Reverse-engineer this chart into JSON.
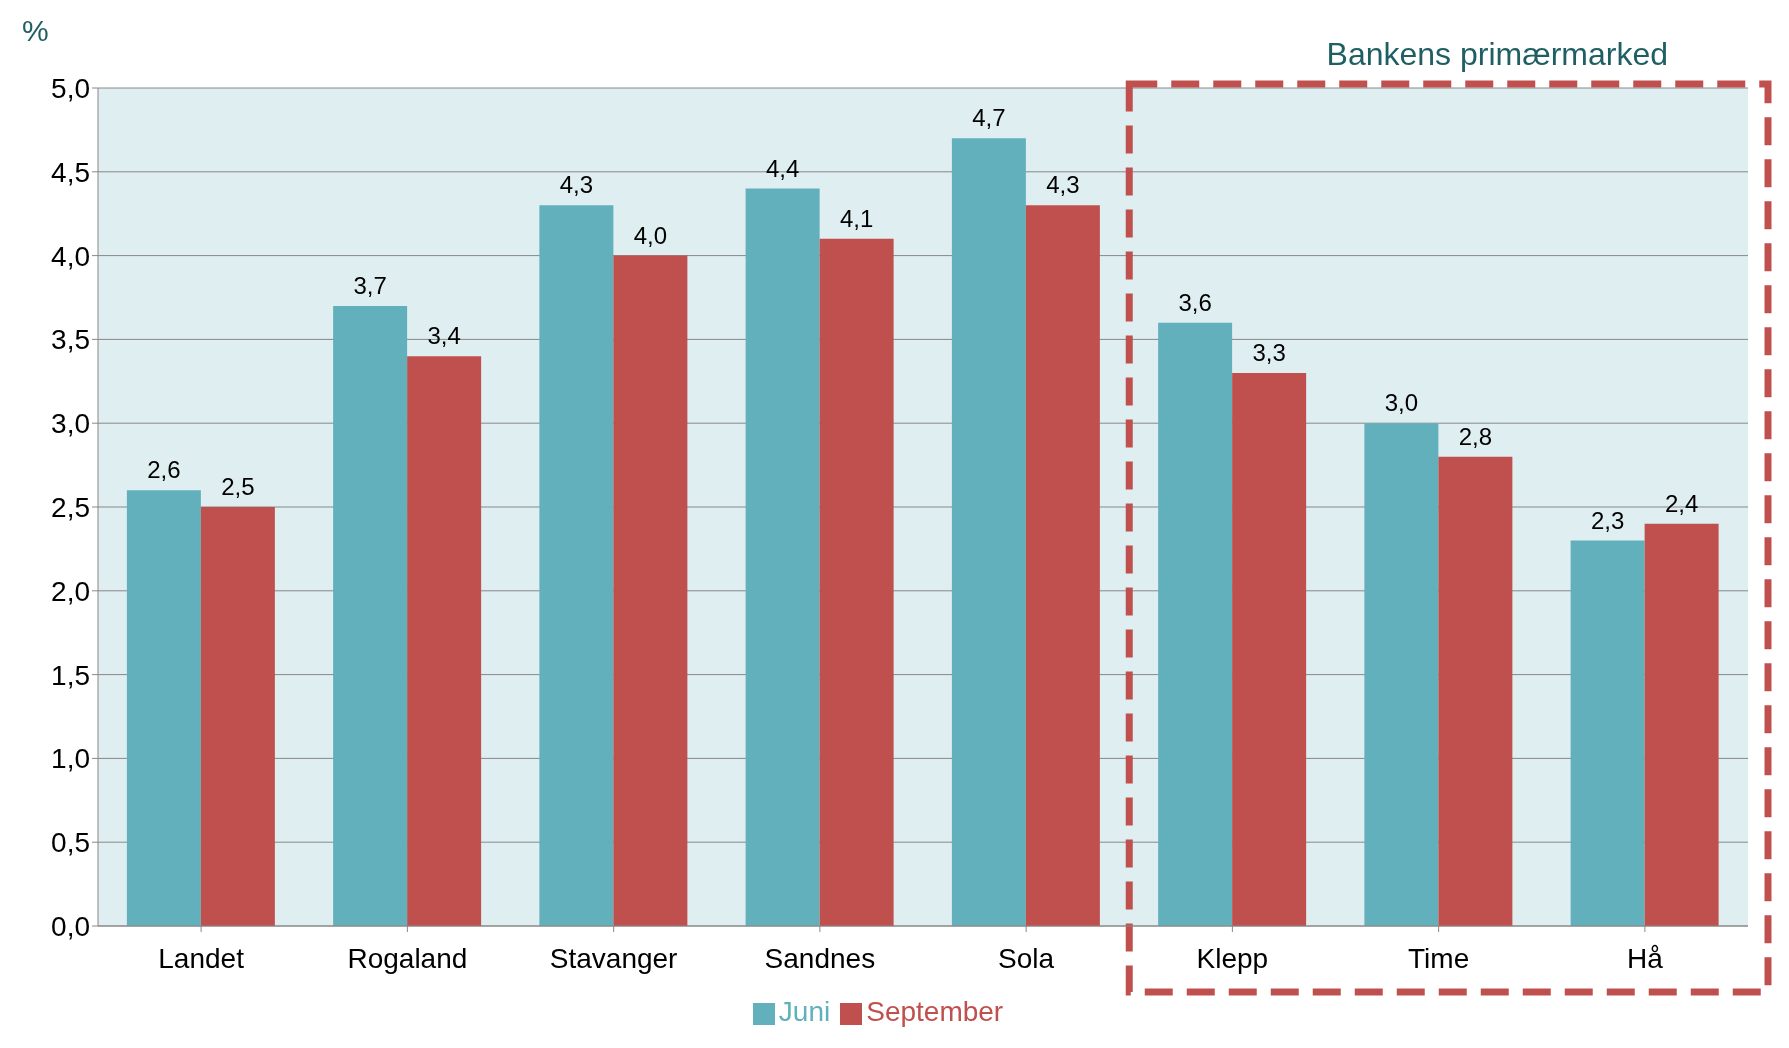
{
  "chart_data": {
    "type": "bar",
    "ylabel": "%",
    "categories": [
      "Landet",
      "Rogaland",
      "Stavanger",
      "Sandnes",
      "Sola",
      "Klepp",
      "Time",
      "Hå"
    ],
    "series": [
      {
        "name": "Juni",
        "color": "#62b0bc",
        "values": [
          2.6,
          3.7,
          4.3,
          4.4,
          4.7,
          3.6,
          3.0,
          2.3
        ],
        "value_labels": [
          "2,6",
          "3,7",
          "4,3",
          "4,4",
          "4,7",
          "3,6",
          "3,0",
          "2,3"
        ]
      },
      {
        "name": "September",
        "color": "#c0504d",
        "values": [
          2.5,
          3.4,
          4.0,
          4.1,
          4.3,
          3.3,
          2.8,
          2.4
        ],
        "value_labels": [
          "2,5",
          "3,4",
          "4,0",
          "4,1",
          "4,3",
          "3,3",
          "2,8",
          "2,4"
        ]
      }
    ],
    "ylim": [
      0,
      5
    ],
    "yticks": [
      {
        "value": 0,
        "label": "0,0"
      },
      {
        "value": 0.5,
        "label": "0,5"
      },
      {
        "value": 1,
        "label": "1,0"
      },
      {
        "value": 1.5,
        "label": "1,5"
      },
      {
        "value": 2,
        "label": "2,0"
      },
      {
        "value": 2.5,
        "label": "2,5"
      },
      {
        "value": 3,
        "label": "3,0"
      },
      {
        "value": 3.5,
        "label": "3,5"
      },
      {
        "value": 4,
        "label": "4,0"
      },
      {
        "value": 4.5,
        "label": "4,5"
      },
      {
        "value": 5,
        "label": "5,0"
      }
    ],
    "annotations": [
      "Bankens primærmarked"
    ],
    "grid": "y",
    "legend": "bottom"
  }
}
